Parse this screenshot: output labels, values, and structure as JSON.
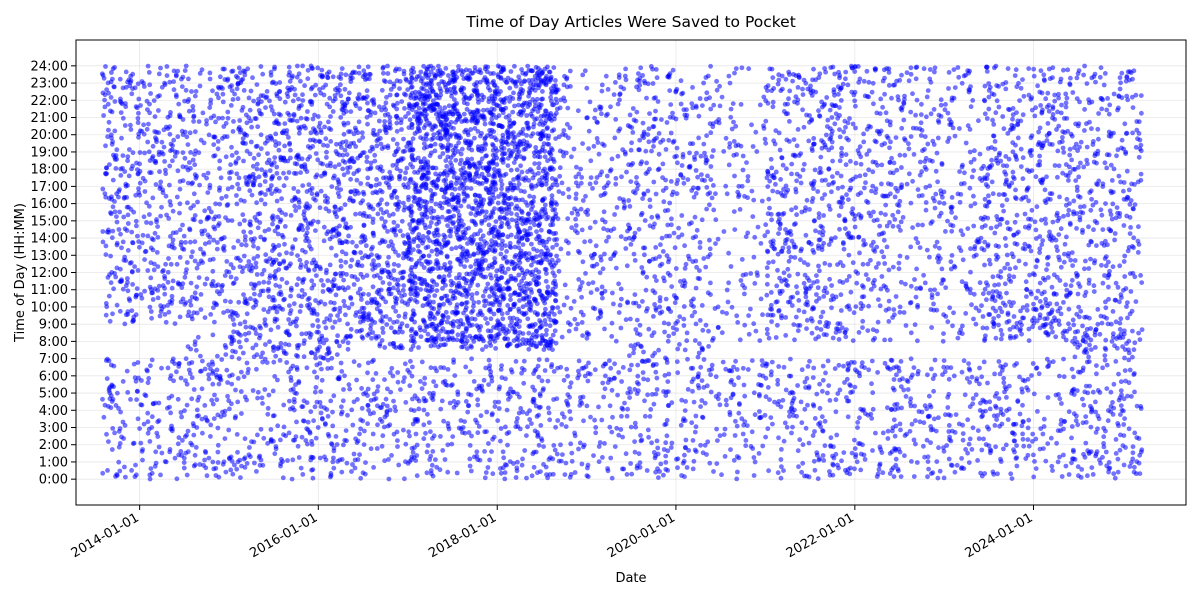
{
  "chart_data": {
    "type": "scatter",
    "title": "Time of Day Articles Were Saved to Pocket",
    "xlabel": "Date",
    "ylabel": "Time of Day (HH:MM)",
    "xlim": [
      "2013-04-16",
      "2025-09-15"
    ],
    "ylim": [
      "-1:30",
      "25:30"
    ],
    "grid": true,
    "point_color": "#0000ff",
    "point_opacity": 0.55,
    "x_ticks": [
      "2014-01-01",
      "2016-01-01",
      "2018-01-01",
      "2020-01-01",
      "2022-01-01",
      "2024-01-01"
    ],
    "y_ticks": [
      "0:00",
      "1:00",
      "2:00",
      "3:00",
      "4:00",
      "5:00",
      "6:00",
      "7:00",
      "8:00",
      "9:00",
      "10:00",
      "11:00",
      "12:00",
      "13:00",
      "14:00",
      "15:00",
      "16:00",
      "17:00",
      "18:00",
      "19:00",
      "20:00",
      "21:00",
      "22:00",
      "23:00",
      "24:00"
    ],
    "data_range": {
      "start": "2013-08-01",
      "end": "2025-03-20"
    },
    "approx_points": 9000,
    "density_regions": [
      {
        "from": "2013-08-01",
        "to": "2015-01-01",
        "t_from": "9:00",
        "t_to": "24:00",
        "weight": 1.5
      },
      {
        "from": "2014-06-01",
        "to": "2015-03-01",
        "t_from": "5:30",
        "t_to": "8:30",
        "weight": 0.7
      },
      {
        "from": "2014-06-01",
        "to": "2015-03-01",
        "t_from": "0:45",
        "t_to": "1:45",
        "weight": 0.6
      },
      {
        "from": "2015-01-01",
        "to": "2016-06-01",
        "t_from": "7:00",
        "t_to": "24:00",
        "weight": 2.0
      },
      {
        "from": "2016-06-01",
        "to": "2017-01-01",
        "t_from": "7:30",
        "t_to": "24:00",
        "weight": 2.2
      },
      {
        "from": "2017-01-01",
        "to": "2018-09-01",
        "t_from": "7:30",
        "t_to": "24:00",
        "weight": 4.0
      },
      {
        "from": "2017-01-01",
        "to": "2017-10-01",
        "t_from": "21:00",
        "t_to": "24:00",
        "weight": 1.2
      },
      {
        "from": "2017-06-01",
        "to": "2018-01-01",
        "t_from": "16:00",
        "t_to": "21:00",
        "weight": 1.0
      },
      {
        "from": "2018-09-01",
        "to": "2019-06-01",
        "t_from": "8:00",
        "t_to": "24:00",
        "weight": 1.0
      },
      {
        "from": "2019-06-01",
        "to": "2020-06-01",
        "t_from": "7:00",
        "t_to": "24:00",
        "weight": 1.2
      },
      {
        "from": "2020-06-01",
        "to": "2021-01-01",
        "t_from": "8:00",
        "t_to": "24:00",
        "weight": 0.7
      },
      {
        "from": "2021-01-01",
        "to": "2022-06-01",
        "t_from": "8:00",
        "t_to": "24:00",
        "weight": 1.5
      },
      {
        "from": "2022-06-01",
        "to": "2023-06-01",
        "t_from": "8:00",
        "t_to": "24:00",
        "weight": 1.0
      },
      {
        "from": "2023-06-01",
        "to": "2024-06-01",
        "t_from": "8:00",
        "t_to": "24:00",
        "weight": 1.6
      },
      {
        "from": "2023-06-01",
        "to": "2024-06-01",
        "t_from": "8:30",
        "t_to": "11:00",
        "weight": 0.6
      },
      {
        "from": "2024-06-01",
        "to": "2025-03-20",
        "t_from": "7:00",
        "t_to": "24:00",
        "weight": 1.3
      },
      {
        "from": "2024-06-01",
        "to": "2025-03-20",
        "t_from": "7:30",
        "t_to": "9:30",
        "weight": 0.4
      },
      {
        "from": "2024-10-01",
        "to": "2024-12-31",
        "t_from": "1:00",
        "t_to": "3:30",
        "weight": 0.15
      },
      {
        "from": "2013-08-01",
        "to": "2025-03-20",
        "t_from": "0:00",
        "t_to": "7:00",
        "weight": 1.2
      }
    ]
  }
}
